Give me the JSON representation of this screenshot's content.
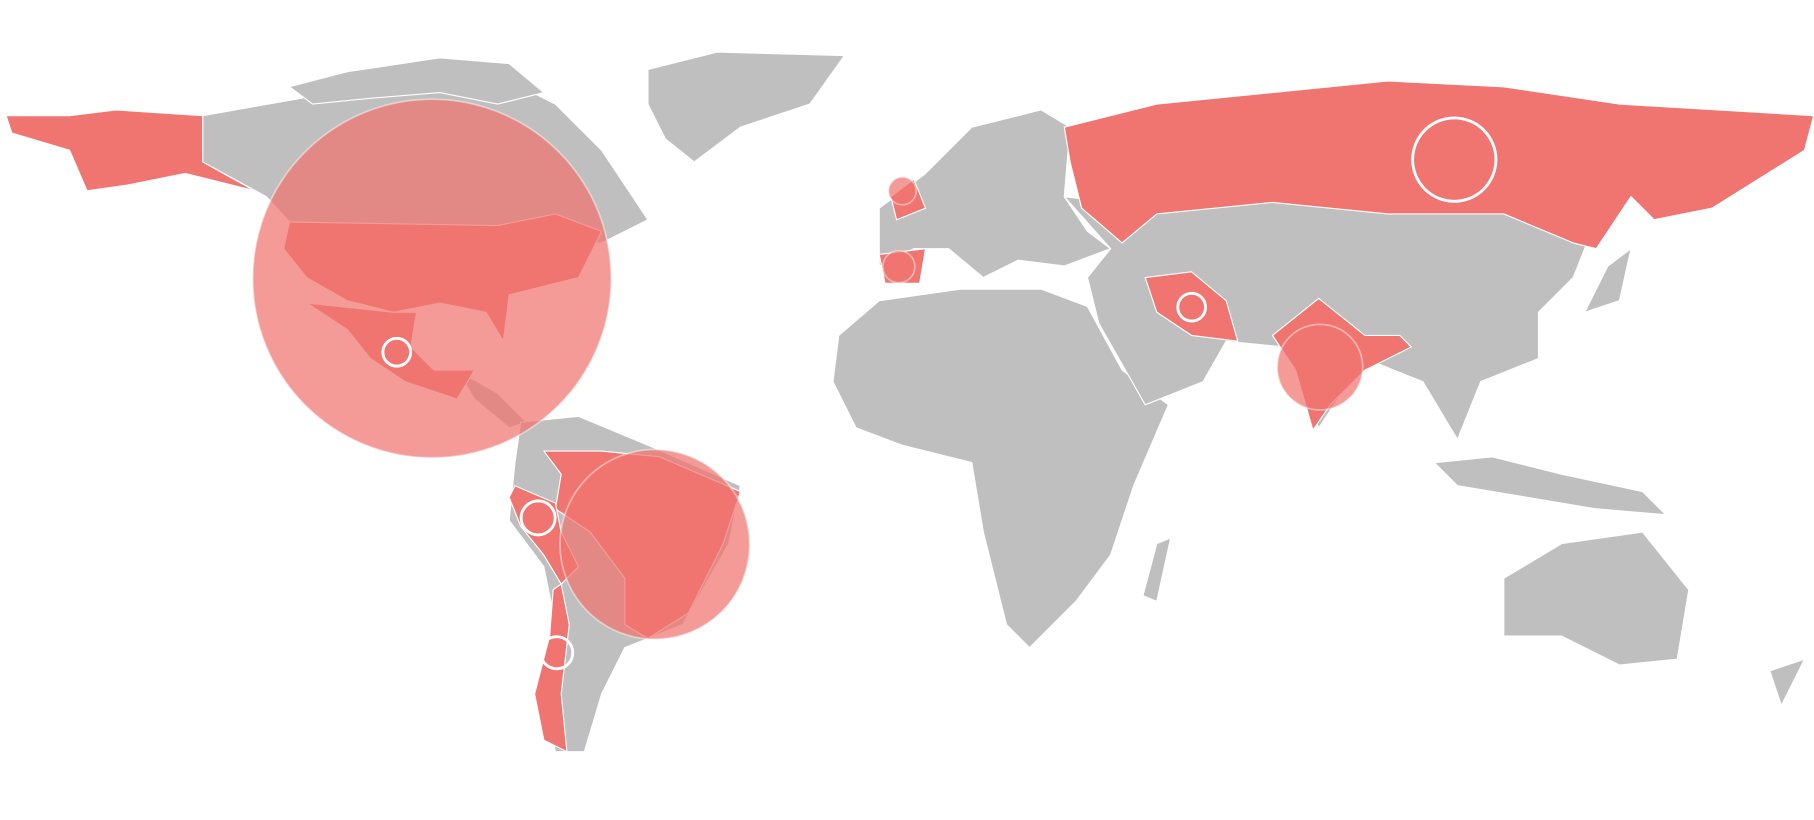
{
  "chart_data": {
    "type": "bubble-map",
    "land_color": "#bfbfbf",
    "highlight_color": "#f07470",
    "bubble_color": "#f07470",
    "bubbles": [
      {
        "lon": -93.5,
        "lat": 38,
        "value": 100,
        "hollow": false
      },
      {
        "lon": -49.2,
        "lat": -12.7,
        "value": 28,
        "hollow": false
      },
      {
        "lon": 83,
        "lat": 22,
        "value": 5.7,
        "hollow": false
      },
      {
        "lon": 0,
        "lat": 52,
        "value": 0.6,
        "hollow": false
      },
      {
        "lon": -0.7,
        "lat": 40,
        "value": 0.8,
        "hollow": false
      },
      {
        "lon": 109.7,
        "lat": 56.5,
        "value": 5.4,
        "hollow": true
      },
      {
        "lon": -72.4,
        "lat": -7.5,
        "value": 0.9,
        "hollow": true
      },
      {
        "lon": -68.7,
        "lat": -33,
        "value": 0.8,
        "hollow": true
      },
      {
        "lon": -100.5,
        "lat": 24.8,
        "value": 0.6,
        "hollow": true
      },
      {
        "lon": 57.5,
        "lat": 33,
        "value": 0.6,
        "hollow": true
      }
    ]
  }
}
